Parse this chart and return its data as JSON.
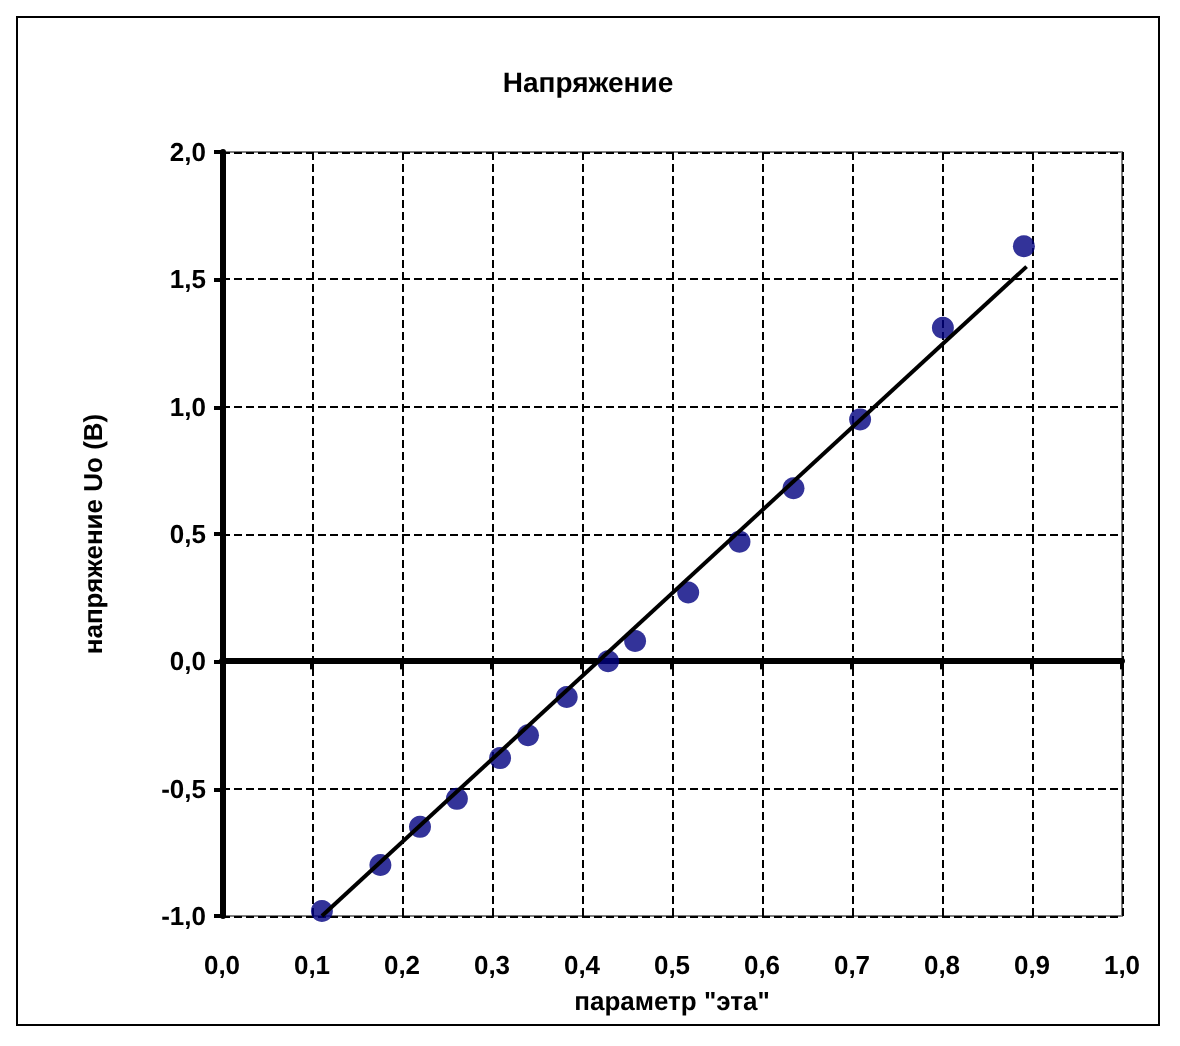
{
  "chart_data": {
    "type": "scatter",
    "title": "Напряжение",
    "xlabel": "параметр \"эта\"",
    "ylabel": "напряжение Uo (В)",
    "xlim": [
      0,
      1
    ],
    "ylim": [
      -1,
      2
    ],
    "xticks": [
      {
        "value": 0,
        "label": "0,0"
      },
      {
        "value": 0.1,
        "label": "0,1"
      },
      {
        "value": 0.2,
        "label": "0,2"
      },
      {
        "value": 0.3,
        "label": "0,3"
      },
      {
        "value": 0.4,
        "label": "0,4"
      },
      {
        "value": 0.5,
        "label": "0,5"
      },
      {
        "value": 0.6,
        "label": "0,6"
      },
      {
        "value": 0.7,
        "label": "0,7"
      },
      {
        "value": 0.8,
        "label": "0,8"
      },
      {
        "value": 0.9,
        "label": "0,9"
      },
      {
        "value": 1,
        "label": "1,0"
      }
    ],
    "yticks": [
      {
        "value": -1,
        "label": "-1,0"
      },
      {
        "value": -0.5,
        "label": "-0,5"
      },
      {
        "value": 0,
        "label": "0,0"
      },
      {
        "value": 0.5,
        "label": "0,5"
      },
      {
        "value": 1,
        "label": "1,0"
      },
      {
        "value": 1.5,
        "label": "1,5"
      },
      {
        "value": 2,
        "label": "2,0"
      }
    ],
    "grid": true,
    "series": [
      {
        "marker": "circle",
        "color": "#000080",
        "x": [
          0.111,
          0.176,
          0.22,
          0.261,
          0.309,
          0.34,
          0.383,
          0.429,
          0.459,
          0.518,
          0.575,
          0.635,
          0.709,
          0.801,
          0.891
        ],
        "values": [
          -0.98,
          -0.8,
          -0.65,
          -0.54,
          -0.38,
          -0.29,
          -0.14,
          0.0,
          0.08,
          0.27,
          0.47,
          0.68,
          0.95,
          1.31,
          1.63
        ]
      },
      {
        "type": "line",
        "color": "#000000",
        "line_style": "solid",
        "x": [
          0.111,
          0.894
        ],
        "values": [
          -1.0,
          1.55
        ]
      }
    ]
  }
}
